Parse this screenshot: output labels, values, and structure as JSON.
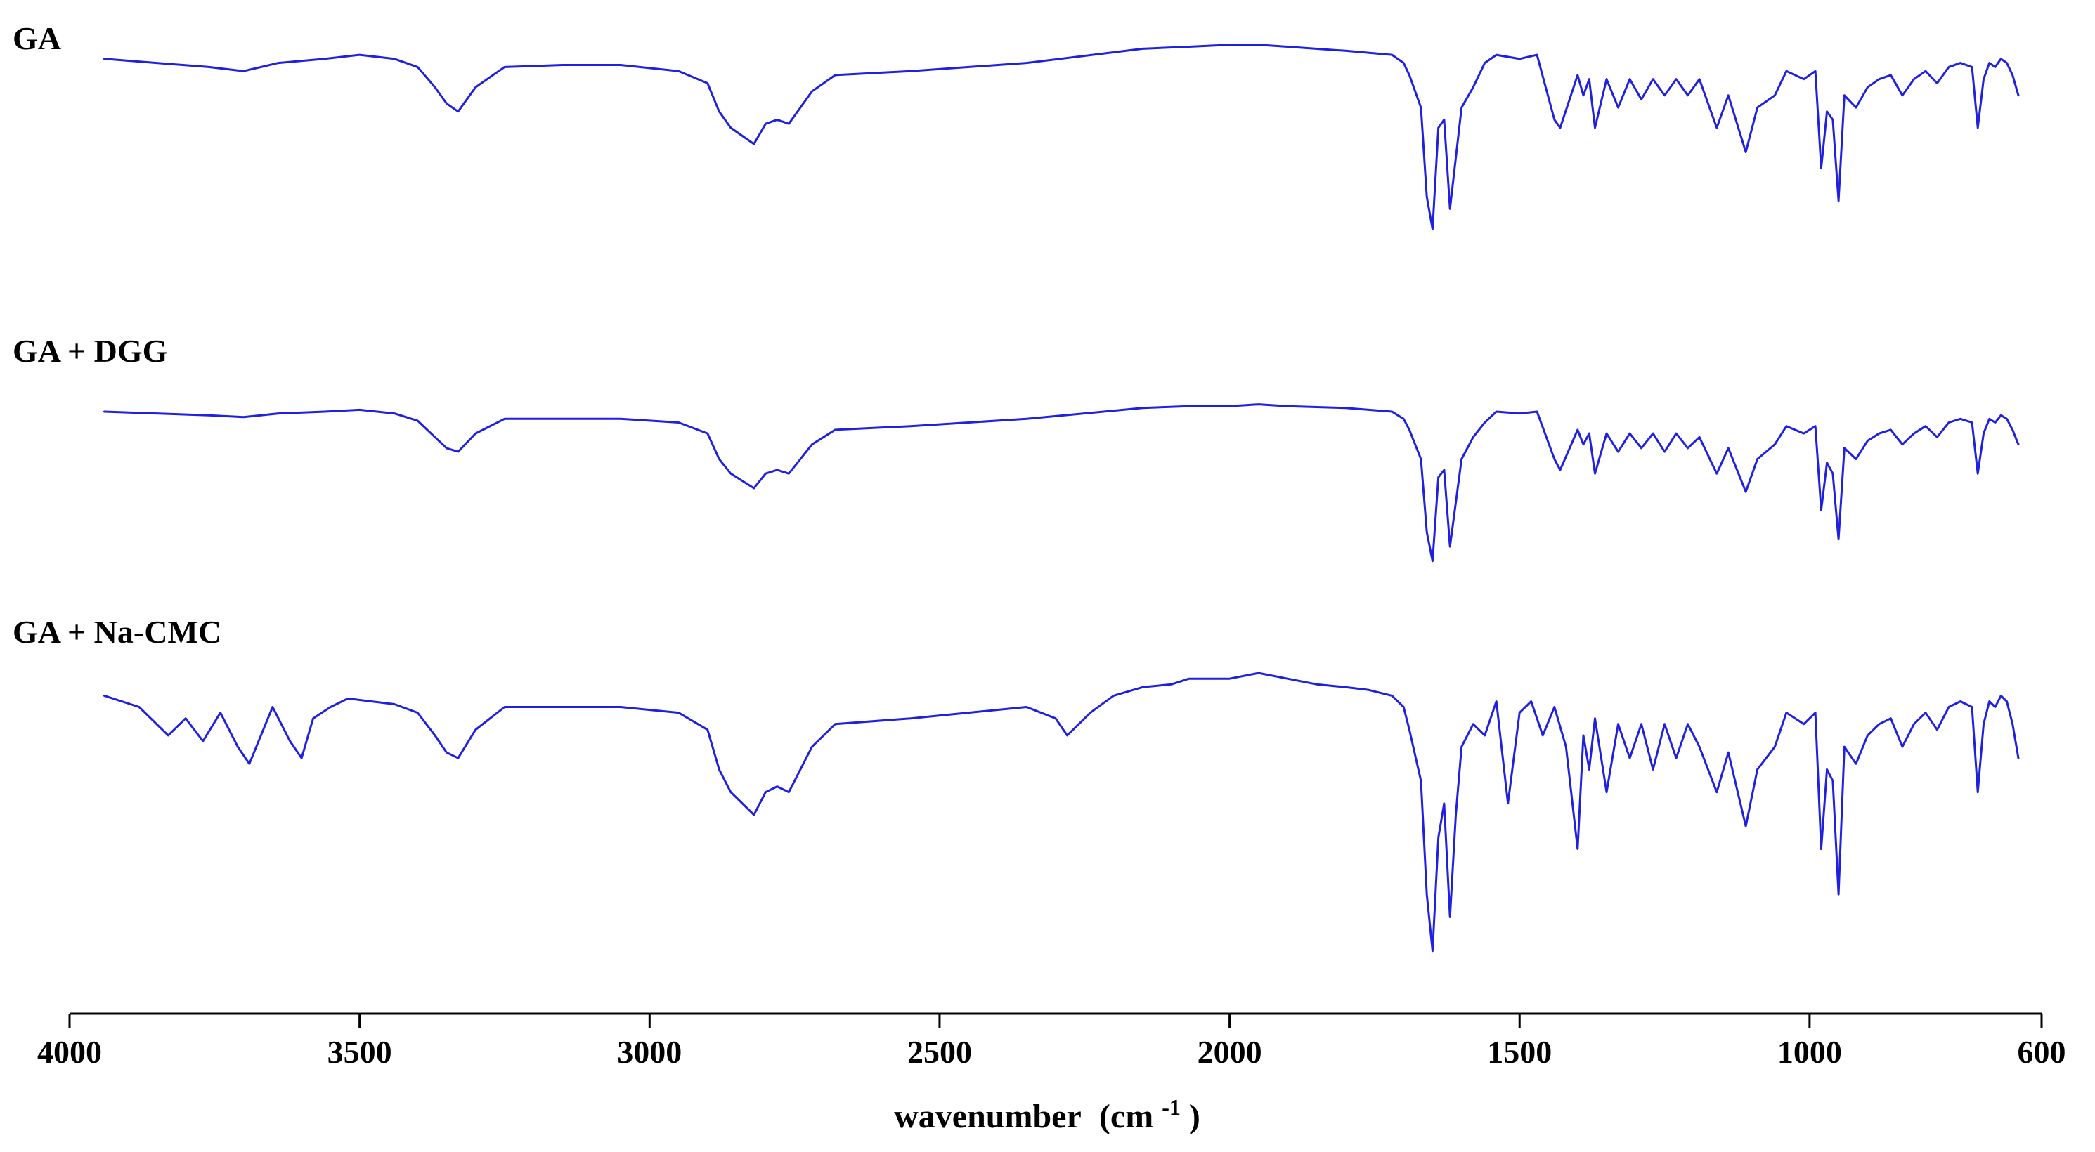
{
  "chart_data": {
    "type": "line",
    "title": "",
    "xlabel": "wavenumber",
    "xlabel_unit": "(cm",
    "xlabel_unit_sup": "-1",
    "xlabel_unit_close": ")",
    "ylabel": "",
    "xlim": [
      4000,
      600
    ],
    "x_reversed": true,
    "grid": false,
    "line_color": "#2020e0",
    "xticks": [
      4000,
      3500,
      3000,
      2500,
      2000,
      1500,
      1000,
      600
    ],
    "xtick_labels": [
      "4000",
      "3500",
      "3000",
      "2500",
      "2000",
      "1500",
      "1000",
      "600"
    ],
    "series": [
      {
        "name": "GA",
        "x": [
          3940,
          3850,
          3760,
          3700,
          3640,
          3560,
          3500,
          3440,
          3400,
          3370,
          3350,
          3330,
          3300,
          3250,
          3150,
          3050,
          2950,
          2900,
          2880,
          2860,
          2840,
          2820,
          2800,
          2780,
          2760,
          2740,
          2720,
          2680,
          2550,
          2350,
          2150,
          2070,
          2000,
          1950,
          1900,
          1800,
          1720,
          1700,
          1690,
          1670,
          1660,
          1650,
          1640,
          1630,
          1620,
          1600,
          1580,
          1560,
          1540,
          1500,
          1470,
          1440,
          1430,
          1400,
          1390,
          1380,
          1370,
          1350,
          1330,
          1310,
          1290,
          1270,
          1250,
          1230,
          1210,
          1190,
          1160,
          1140,
          1110,
          1090,
          1060,
          1040,
          1010,
          990,
          980,
          970,
          960,
          950,
          940,
          920,
          900,
          880,
          860,
          840,
          820,
          800,
          780,
          760,
          740,
          720,
          710,
          700,
          690,
          680,
          670,
          660,
          650,
          640
        ],
        "y": [
          97,
          96,
          95,
          94,
          96,
          97,
          98,
          97,
          95,
          90,
          86,
          84,
          90,
          95,
          95.5,
          95.5,
          94,
          91,
          84,
          80,
          78,
          76,
          81,
          82,
          81,
          85,
          89,
          93,
          94,
          96,
          99.5,
          100,
          100.5,
          100.5,
          100,
          99,
          98,
          96,
          93,
          85,
          63,
          55,
          80,
          82,
          60,
          85,
          90,
          96,
          98,
          97,
          98,
          82,
          80,
          93,
          88,
          92,
          80,
          92,
          85,
          92,
          87,
          92,
          88,
          92,
          88,
          92,
          80,
          88,
          74,
          85,
          88,
          94,
          92,
          94,
          70,
          84,
          82,
          62,
          88,
          85,
          90,
          92,
          93,
          88,
          92,
          94,
          91,
          95,
          96,
          95,
          80,
          92,
          96,
          95,
          97,
          96,
          93,
          88
        ]
      },
      {
        "name": "GA + DGG",
        "x": [
          3940,
          3850,
          3760,
          3700,
          3640,
          3560,
          3500,
          3440,
          3400,
          3370,
          3350,
          3330,
          3300,
          3250,
          3150,
          3050,
          2950,
          2900,
          2880,
          2860,
          2840,
          2820,
          2800,
          2780,
          2760,
          2740,
          2720,
          2680,
          2550,
          2350,
          2150,
          2070,
          2000,
          1950,
          1900,
          1800,
          1720,
          1700,
          1690,
          1670,
          1660,
          1650,
          1640,
          1630,
          1620,
          1600,
          1580,
          1560,
          1540,
          1500,
          1470,
          1440,
          1430,
          1400,
          1390,
          1380,
          1370,
          1350,
          1330,
          1310,
          1290,
          1270,
          1250,
          1230,
          1210,
          1190,
          1160,
          1140,
          1110,
          1090,
          1060,
          1040,
          1010,
          990,
          980,
          970,
          960,
          950,
          940,
          920,
          900,
          880,
          860,
          840,
          820,
          800,
          780,
          760,
          740,
          720,
          710,
          700,
          690,
          680,
          670,
          660,
          650,
          640
        ],
        "y": [
          97,
          96.5,
          96,
          95.5,
          96.5,
          97,
          97.5,
          96.5,
          94.5,
          90,
          87,
          86,
          91,
          95,
          95,
          95,
          94,
          91,
          84,
          80,
          78,
          76,
          80,
          81,
          80,
          84,
          88,
          92,
          93,
          95,
          98,
          98.5,
          98.5,
          99,
          98.5,
          98,
          97,
          95,
          92,
          84,
          64,
          56,
          79,
          81,
          60,
          84,
          90,
          94,
          97,
          96.5,
          97,
          84,
          81,
          92,
          88,
          91,
          80,
          91,
          86,
          91,
          87,
          91,
          86,
          91,
          87,
          90,
          80,
          87,
          75,
          84,
          88,
          93,
          91,
          93,
          70,
          83,
          80,
          62,
          87,
          84,
          89,
          91,
          92,
          88,
          91,
          93,
          90,
          94,
          95,
          94,
          80,
          91,
          95,
          94,
          96,
          95,
          92,
          88
        ]
      },
      {
        "name": "GA + Na-CMC",
        "x": [
          3940,
          3880,
          3830,
          3800,
          3770,
          3740,
          3710,
          3690,
          3670,
          3650,
          3620,
          3600,
          3580,
          3550,
          3520,
          3480,
          3440,
          3400,
          3370,
          3350,
          3330,
          3300,
          3250,
          3150,
          3050,
          2950,
          2900,
          2880,
          2860,
          2840,
          2820,
          2800,
          2780,
          2760,
          2740,
          2720,
          2680,
          2550,
          2350,
          2300,
          2280,
          2260,
          2240,
          2200,
          2150,
          2100,
          2070,
          2000,
          1950,
          1900,
          1850,
          1800,
          1760,
          1720,
          1700,
          1690,
          1670,
          1660,
          1650,
          1640,
          1630,
          1620,
          1610,
          1600,
          1580,
          1560,
          1540,
          1520,
          1500,
          1480,
          1460,
          1440,
          1420,
          1400,
          1390,
          1380,
          1370,
          1350,
          1330,
          1310,
          1290,
          1270,
          1250,
          1230,
          1210,
          1190,
          1160,
          1140,
          1110,
          1090,
          1060,
          1040,
          1010,
          990,
          980,
          970,
          960,
          950,
          940,
          920,
          900,
          880,
          860,
          840,
          820,
          800,
          780,
          760,
          740,
          720,
          710,
          700,
          690,
          680,
          670,
          660,
          650,
          640
        ],
        "y": [
          97,
          95,
          90,
          93,
          89,
          94,
          88,
          85,
          90,
          95,
          89,
          86,
          93,
          95,
          96.5,
          96,
          95.5,
          94,
          90,
          87,
          86,
          91,
          95,
          95,
          95,
          94,
          91,
          84,
          80,
          78,
          76,
          80,
          81,
          80,
          84,
          88,
          92,
          93,
          95,
          93,
          90,
          92,
          94,
          97,
          98.5,
          99,
          100,
          100,
          101,
          100,
          99,
          98.5,
          98,
          97,
          95,
          91,
          82,
          62,
          52,
          72,
          78,
          58,
          76,
          88,
          92,
          90,
          96,
          78,
          94,
          96,
          90,
          95,
          88,
          70,
          90,
          84,
          93,
          80,
          92,
          86,
          92,
          84,
          92,
          86,
          92,
          88,
          80,
          87,
          74,
          84,
          88,
          94,
          92,
          94,
          70,
          84,
          82,
          62,
          88,
          85,
          90,
          92,
          93,
          88,
          92,
          94,
          91,
          95,
          96,
          95,
          80,
          92,
          96,
          95,
          97,
          96,
          92,
          86
        ]
      }
    ]
  }
}
